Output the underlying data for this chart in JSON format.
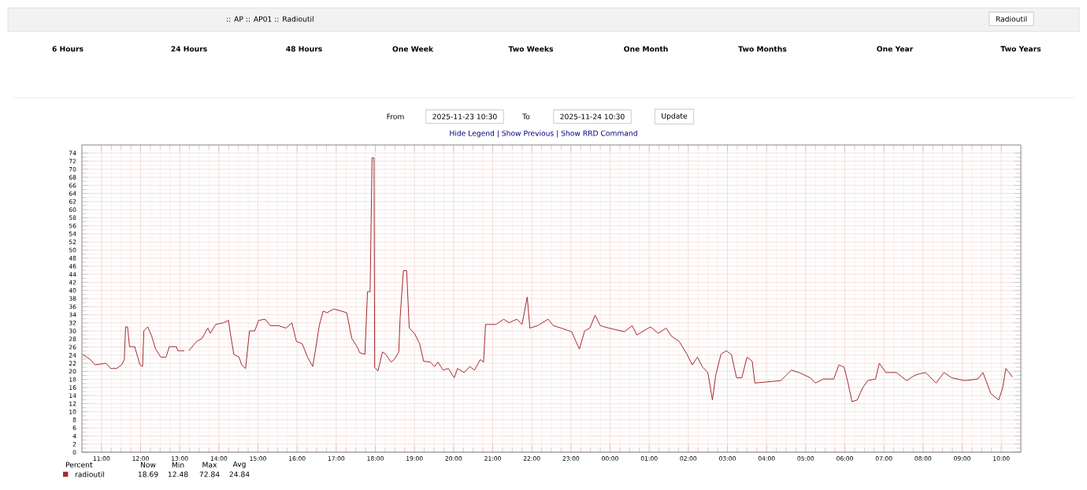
{
  "chart_data": {
    "type": "line",
    "title": ":: AP :: AP01 :: Radioutil",
    "legend_title": "Percent",
    "legend": "bottom",
    "grid": true,
    "xlim": [
      "2025-11-23T10:30",
      "2025-11-24T10:30"
    ],
    "xticks": [
      {
        "value": "2025-11-23T11:00",
        "label": "11:00"
      },
      {
        "value": "2025-11-23T12:00",
        "label": "12:00"
      },
      {
        "value": "2025-11-23T13:00",
        "label": "13:00"
      },
      {
        "value": "2025-11-23T14:00",
        "label": "14:00"
      },
      {
        "value": "2025-11-23T15:00",
        "label": "15:00"
      },
      {
        "value": "2025-11-23T16:00",
        "label": "16:00"
      },
      {
        "value": "2025-11-23T17:00",
        "label": "17:00"
      },
      {
        "value": "2025-11-23T18:00",
        "label": "18:00"
      },
      {
        "value": "2025-11-23T19:00",
        "label": "19:00"
      },
      {
        "value": "2025-11-23T20:00",
        "label": "20:00"
      },
      {
        "value": "2025-11-23T21:00",
        "label": "21:00"
      },
      {
        "value": "2025-11-23T22:00",
        "label": "22:00"
      },
      {
        "value": "2025-11-23T23:00",
        "label": "23:00"
      },
      {
        "value": "2025-11-24T00:00",
        "label": "00:00"
      },
      {
        "value": "2025-11-24T01:00",
        "label": "01:00"
      },
      {
        "value": "2025-11-24T02:00",
        "label": "02:00"
      },
      {
        "value": "2025-11-24T03:00",
        "label": "03:00"
      },
      {
        "value": "2025-11-24T04:00",
        "label": "04:00"
      },
      {
        "value": "2025-11-24T05:00",
        "label": "05:00"
      },
      {
        "value": "2025-11-24T06:00",
        "label": "06:00"
      },
      {
        "value": "2025-11-24T07:00",
        "label": "07:00"
      },
      {
        "value": "2025-11-24T08:00",
        "label": "08:00"
      },
      {
        "value": "2025-11-24T09:00",
        "label": "09:00"
      },
      {
        "value": "2025-11-24T10:00",
        "label": "10:00"
      }
    ],
    "ylim": [
      0,
      76
    ],
    "yticks": [
      0,
      2,
      4,
      6,
      8,
      10,
      12,
      14,
      16,
      18,
      20,
      22,
      24,
      26,
      28,
      30,
      32,
      34,
      36,
      38,
      40,
      42,
      44,
      46,
      48,
      50,
      52,
      54,
      56,
      58,
      60,
      62,
      64,
      66,
      68,
      70,
      72,
      74
    ],
    "series": [
      {
        "name": "radioutil",
        "color": "#a52a2a",
        "x": [
          "2025-11-23T10:31",
          "2025-11-23T10:43",
          "2025-11-23T10:50",
          "2025-11-23T11:07",
          "2025-11-23T11:14",
          "2025-11-23T11:23",
          "2025-11-23T11:31",
          "2025-11-23T11:35",
          "2025-11-23T11:37",
          "2025-11-23T11:40",
          "2025-11-23T11:43",
          "2025-11-23T11:51",
          "2025-11-23T11:59",
          "2025-11-23T12:03",
          "2025-11-23T12:05",
          "2025-11-23T12:11",
          "2025-11-23T12:17",
          "2025-11-23T12:23",
          "2025-11-23T12:31",
          "2025-11-23T12:39",
          "2025-11-23T12:44",
          "2025-11-23T12:55",
          "2025-11-23T12:57",
          "2025-11-23T13:07",
          "2025-11-23T13:10",
          "2025-11-23T13:14",
          "2025-11-23T13:26",
          "2025-11-23T13:34",
          "2025-11-23T13:43",
          "2025-11-23T13:47",
          "2025-11-23T13:55",
          "2025-11-23T14:07",
          "2025-11-23T14:15",
          "2025-11-23T14:17",
          "2025-11-23T14:23",
          "2025-11-23T14:31",
          "2025-11-23T14:35",
          "2025-11-23T14:41",
          "2025-11-23T14:47",
          "2025-11-23T14:55",
          "2025-11-23T15:01",
          "2025-11-23T15:11",
          "2025-11-23T15:19",
          "2025-11-23T15:31",
          "2025-11-23T15:43",
          "2025-11-23T15:52",
          "2025-11-23T15:59",
          "2025-11-23T16:08",
          "2025-11-23T16:16",
          "2025-11-23T16:24",
          "2025-11-23T16:29",
          "2025-11-23T16:34",
          "2025-11-23T16:40",
          "2025-11-23T16:46",
          "2025-11-23T16:56",
          "2025-11-23T17:08",
          "2025-11-23T17:16",
          "2025-11-23T17:24",
          "2025-11-23T17:32",
          "2025-11-23T17:36",
          "2025-11-23T17:44",
          "2025-11-23T17:48",
          "2025-11-23T17:52",
          "2025-11-23T17:55",
          "2025-11-23T17:58",
          "2025-11-23T17:59",
          "2025-11-23T18:04",
          "2025-11-23T18:11",
          "2025-11-23T18:16",
          "2025-11-23T18:24",
          "2025-11-23T18:29",
          "2025-11-23T18:36",
          "2025-11-23T18:38",
          "2025-11-23T18:43",
          "2025-11-23T18:48",
          "2025-11-23T18:52",
          "2025-11-23T19:00",
          "2025-11-23T19:08",
          "2025-11-23T19:14",
          "2025-11-23T19:24",
          "2025-11-23T19:31",
          "2025-11-23T19:36",
          "2025-11-23T19:44",
          "2025-11-23T19:52",
          "2025-11-23T20:01",
          "2025-11-23T20:06",
          "2025-11-23T20:16",
          "2025-11-23T20:25",
          "2025-11-23T20:32",
          "2025-11-23T20:41",
          "2025-11-23T20:46",
          "2025-11-23T20:49",
          "2025-11-23T21:05",
          "2025-11-23T21:17",
          "2025-11-23T21:25",
          "2025-11-23T21:37",
          "2025-11-23T21:45",
          "2025-11-23T21:53",
          "2025-11-23T21:57",
          "2025-11-23T22:09",
          "2025-11-23T22:25",
          "2025-11-23T22:33",
          "2025-11-23T22:45",
          "2025-11-23T23:01",
          "2025-11-23T23:13",
          "2025-11-23T23:21",
          "2025-11-23T23:29",
          "2025-11-23T23:37",
          "2025-11-23T23:45",
          "2025-11-23T23:58",
          "2025-11-24T00:22",
          "2025-11-24T00:34",
          "2025-11-24T00:41",
          "2025-11-24T01:02",
          "2025-11-24T01:14",
          "2025-11-24T01:26",
          "2025-11-24T01:34",
          "2025-11-24T01:46",
          "2025-11-24T01:58",
          "2025-11-24T02:06",
          "2025-11-24T02:14",
          "2025-11-24T02:22",
          "2025-11-24T02:30",
          "2025-11-24T02:37",
          "2025-11-24T02:42",
          "2025-11-24T02:50",
          "2025-11-24T02:58",
          "2025-11-24T03:06",
          "2025-11-24T03:14",
          "2025-11-24T03:22",
          "2025-11-24T03:30",
          "2025-11-24T03:38",
          "2025-11-24T03:42",
          "2025-11-24T04:22",
          "2025-11-24T04:38",
          "2025-11-24T04:50",
          "2025-11-24T05:07",
          "2025-11-24T05:15",
          "2025-11-24T05:27",
          "2025-11-24T05:43",
          "2025-11-24T05:51",
          "2025-11-24T05:59",
          "2025-11-24T06:05",
          "2025-11-24T06:11",
          "2025-11-24T06:19",
          "2025-11-24T06:27",
          "2025-11-24T06:35",
          "2025-11-24T06:47",
          "2025-11-24T06:53",
          "2025-11-24T07:03",
          "2025-11-24T07:19",
          "2025-11-24T07:35",
          "2025-11-24T07:47",
          "2025-11-24T07:55",
          "2025-11-24T08:04",
          "2025-11-24T08:20",
          "2025-11-24T08:32",
          "2025-11-24T08:44",
          "2025-11-24T09:04",
          "2025-11-24T09:24",
          "2025-11-24T09:32",
          "2025-11-24T09:44",
          "2025-11-24T09:56",
          "2025-11-24T10:02",
          "2025-11-24T10:07",
          "2025-11-24T10:12",
          "2025-11-24T10:17"
        ],
        "values": [
          24.2,
          22.9,
          21.6,
          22.0,
          20.7,
          20.7,
          21.6,
          22.9,
          31.0,
          31.0,
          26.1,
          26.1,
          21.6,
          21.2,
          30.0,
          31.0,
          28.7,
          25.5,
          23.5,
          23.5,
          26.1,
          26.1,
          25.1,
          25.1,
          null,
          25.1,
          27.4,
          28.1,
          30.7,
          29.4,
          31.6,
          32.0,
          32.6,
          30.0,
          24.2,
          23.5,
          21.6,
          20.7,
          30.0,
          30.0,
          32.6,
          32.9,
          31.3,
          31.3,
          30.7,
          32.0,
          27.4,
          26.8,
          23.5,
          21.2,
          26.1,
          31.3,
          34.9,
          34.5,
          35.4,
          34.9,
          34.5,
          28.1,
          26.1,
          24.6,
          24.2,
          39.7,
          39.7,
          72.8,
          72.8,
          21.0,
          20.1,
          24.8,
          24.2,
          22.3,
          22.9,
          24.8,
          33.2,
          44.9,
          44.9,
          30.7,
          29.4,
          26.8,
          22.5,
          22.3,
          21.2,
          22.3,
          20.3,
          20.7,
          18.4,
          20.7,
          19.7,
          21.2,
          20.3,
          22.9,
          22.3,
          31.6,
          31.6,
          32.9,
          32.0,
          32.9,
          31.6,
          38.4,
          30.7,
          31.3,
          32.9,
          31.3,
          30.7,
          29.8,
          25.5,
          30.0,
          30.7,
          33.9,
          31.3,
          30.7,
          29.8,
          31.3,
          29.0,
          31.0,
          29.4,
          30.7,
          28.7,
          27.4,
          24.2,
          21.6,
          23.5,
          21.0,
          19.7,
          12.9,
          19.0,
          24.2,
          25.1,
          24.2,
          18.4,
          18.4,
          23.5,
          22.5,
          17.1,
          17.7,
          20.3,
          19.7,
          18.4,
          17.1,
          18.1,
          18.1,
          21.6,
          21.0,
          17.1,
          12.5,
          12.9,
          15.8,
          17.7,
          18.1,
          22.0,
          19.7,
          19.7,
          17.7,
          19.0,
          19.4,
          19.7,
          17.1,
          19.7,
          18.4,
          17.7,
          18.1,
          19.7,
          14.5,
          12.9,
          15.8,
          20.7,
          19.7,
          18.6
        ]
      }
    ],
    "annotations": [
      "Radioutil",
      "6 Hours",
      "24 Hours",
      "48 Hours",
      "One Week",
      "Two Weeks",
      "One Month",
      "Two Months",
      "One Year",
      "Two Years",
      "From",
      "2025-11-23 10:30",
      "To",
      "2025-11-24 10:30",
      "Update",
      "Hide Legend | Show Previous | Show RRD Command",
      "Now",
      "Min",
      "Max",
      "Avg",
      "18.69",
      "12.48",
      "72.84",
      "24.84"
    ]
  }
}
